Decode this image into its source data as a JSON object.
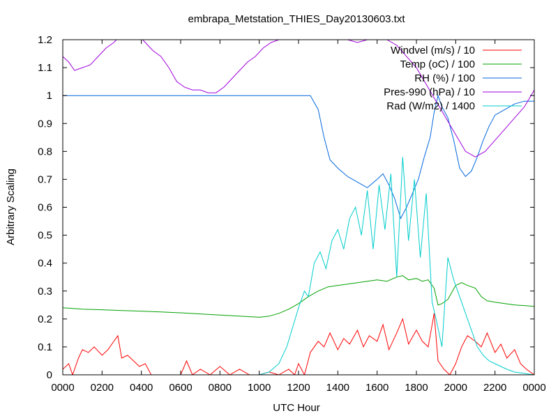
{
  "chart_data": {
    "type": "line",
    "title": "embrapa_Metstation_THIES_Day20130603.txt",
    "xlabel": "UTC Hour",
    "ylabel": "Arbitrary Scaling",
    "xlim": [
      0,
      24
    ],
    "ylim": [
      0,
      1.2
    ],
    "x_ticks": [
      0,
      2,
      4,
      6,
      8,
      10,
      12,
      14,
      16,
      18,
      20,
      22,
      24
    ],
    "x_tick_labels": [
      "0000",
      "0200",
      "0400",
      "0600",
      "0800",
      "1000",
      "1200",
      "1400",
      "1600",
      "1800",
      "2000",
      "2200",
      "0000"
    ],
    "y_ticks": [
      0,
      0.1,
      0.2,
      0.3,
      0.4,
      0.5,
      0.6,
      0.7,
      0.8,
      0.9,
      1,
      1.1,
      1.2
    ],
    "y_tick_labels": [
      "0",
      "0.1",
      "0.2",
      "0.3",
      "0.4",
      "0.5",
      "0.6",
      "0.7",
      "0.8",
      "0.9",
      "1",
      "1.1",
      "1.2"
    ],
    "grid": false,
    "legend_position": "top-right",
    "series": [
      {
        "name": "Windvel (m/s) / 10",
        "color": "#ff0000",
        "x": [
          0,
          0.3,
          0.5,
          0.8,
          1.0,
          1.3,
          1.6,
          2.0,
          2.3,
          2.6,
          2.8,
          3.0,
          3.3,
          3.6,
          3.9,
          4.2,
          4.5,
          5.0,
          5.5,
          6.0,
          6.3,
          6.6,
          7.0,
          7.5,
          8.0,
          8.5,
          9.0,
          9.5,
          10.0,
          10.5,
          11.0,
          11.5,
          11.8,
          12.0,
          12.3,
          12.6,
          13.0,
          13.3,
          13.6,
          14.0,
          14.3,
          14.6,
          15.0,
          15.3,
          15.6,
          16.0,
          16.3,
          16.6,
          17.0,
          17.3,
          17.6,
          18.0,
          18.3,
          18.6,
          18.9,
          19.1,
          19.4,
          19.7,
          20.0,
          20.3,
          20.6,
          21.0,
          21.3,
          21.6,
          22.0,
          22.3,
          22.6,
          23.0,
          23.3,
          23.6,
          24.0
        ],
        "values": [
          0.02,
          0.04,
          0.0,
          0.06,
          0.09,
          0.08,
          0.1,
          0.07,
          0.09,
          0.12,
          0.14,
          0.06,
          0.07,
          0.05,
          0.03,
          0.04,
          0.0,
          0.0,
          0.0,
          0.0,
          0.05,
          0.0,
          0.02,
          0.0,
          0.03,
          0.0,
          0.02,
          0.0,
          0.0,
          0.01,
          0.0,
          0.02,
          0.0,
          0.04,
          0.0,
          0.08,
          0.12,
          0.1,
          0.15,
          0.09,
          0.13,
          0.11,
          0.16,
          0.1,
          0.14,
          0.12,
          0.18,
          0.09,
          0.15,
          0.2,
          0.11,
          0.16,
          0.12,
          0.1,
          0.22,
          0.05,
          0.02,
          0.0,
          0.04,
          0.1,
          0.14,
          0.12,
          0.1,
          0.15,
          0.08,
          0.11,
          0.06,
          0.09,
          0.04,
          0.02,
          0.0
        ]
      },
      {
        "name": "Temp (oC) / 100",
        "color": "#00a000",
        "x": [
          0,
          1,
          2,
          3,
          4,
          5,
          6,
          7,
          8,
          9,
          10,
          10.5,
          11,
          11.5,
          12,
          12.5,
          13,
          13.5,
          14,
          14.5,
          15,
          15.5,
          16,
          16.5,
          17,
          17.3,
          17.6,
          18,
          18.3,
          18.6,
          18.9,
          19.1,
          19.3,
          19.6,
          20,
          20.3,
          20.6,
          21,
          21.3,
          21.6,
          22,
          22.5,
          23,
          23.5,
          24
        ],
        "values": [
          0.24,
          0.235,
          0.233,
          0.23,
          0.228,
          0.225,
          0.222,
          0.218,
          0.214,
          0.21,
          0.206,
          0.21,
          0.22,
          0.235,
          0.255,
          0.28,
          0.3,
          0.315,
          0.32,
          0.325,
          0.33,
          0.335,
          0.34,
          0.335,
          0.35,
          0.355,
          0.34,
          0.345,
          0.335,
          0.34,
          0.31,
          0.25,
          0.255,
          0.27,
          0.32,
          0.33,
          0.32,
          0.31,
          0.28,
          0.265,
          0.26,
          0.255,
          0.25,
          0.248,
          0.245
        ]
      },
      {
        "name": "RH (%) / 100",
        "color": "#0066dd",
        "x": [
          0,
          2,
          4,
          6,
          8,
          10,
          12,
          12.3,
          12.6,
          13,
          13.3,
          13.6,
          14,
          14.5,
          15,
          15.5,
          16,
          16.3,
          16.6,
          16.9,
          17.2,
          17.5,
          17.8,
          18.1,
          18.4,
          18.7,
          18.9,
          19.1,
          19.3,
          19.6,
          19.9,
          20.2,
          20.5,
          20.8,
          21.1,
          21.4,
          21.7,
          22,
          22.5,
          23,
          23.5,
          24
        ],
        "values": [
          1.0,
          1.0,
          1.0,
          1.0,
          1.0,
          1.0,
          1.0,
          1.0,
          1.0,
          0.95,
          0.85,
          0.77,
          0.74,
          0.71,
          0.69,
          0.67,
          0.7,
          0.72,
          0.68,
          0.63,
          0.56,
          0.6,
          0.65,
          0.7,
          0.78,
          0.85,
          0.94,
          1.0,
          0.96,
          0.92,
          0.84,
          0.74,
          0.71,
          0.73,
          0.78,
          0.84,
          0.89,
          0.93,
          0.95,
          0.97,
          0.98,
          0.98
        ]
      },
      {
        "name": "Pres-990 (hPa) / 10",
        "color": "#a000dd",
        "x": [
          0,
          0.3,
          0.6,
          1.0,
          1.4,
          1.8,
          2.2,
          2.6,
          3.0,
          3.4,
          3.8,
          4.2,
          4.6,
          5.0,
          5.4,
          5.8,
          6.2,
          6.6,
          7.0,
          7.4,
          7.8,
          8.2,
          8.6,
          9.0,
          9.4,
          9.8,
          10.2,
          10.6,
          11.0,
          11.4,
          11.8,
          12.2,
          12.6,
          13.0,
          13.5,
          14.0,
          14.5,
          15.0,
          15.5,
          16.0,
          16.5,
          17.0,
          17.5,
          18.0,
          18.5,
          19.0,
          19.5,
          20.0,
          20.5,
          21.0,
          21.5,
          22.0,
          22.5,
          23.0,
          23.5,
          24.0
        ],
        "values": [
          1.14,
          1.12,
          1.09,
          1.1,
          1.11,
          1.14,
          1.17,
          1.19,
          1.22,
          1.23,
          1.22,
          1.19,
          1.16,
          1.14,
          1.1,
          1.05,
          1.03,
          1.02,
          1.02,
          1.01,
          1.01,
          1.03,
          1.06,
          1.09,
          1.12,
          1.14,
          1.17,
          1.19,
          1.2,
          1.22,
          1.24,
          1.25,
          1.26,
          1.25,
          1.23,
          1.21,
          1.2,
          1.19,
          1.2,
          1.21,
          1.2,
          1.18,
          1.14,
          1.1,
          1.04,
          0.98,
          0.92,
          0.86,
          0.8,
          0.78,
          0.8,
          0.84,
          0.88,
          0.92,
          0.96,
          1.02
        ]
      },
      {
        "name": "Rad (W/m2) / 1400",
        "color": "#00cccc",
        "x": [
          0,
          2,
          4,
          6,
          8,
          10,
          10.5,
          11.0,
          11.4,
          11.7,
          12.0,
          12.3,
          12.5,
          12.8,
          13.1,
          13.4,
          13.7,
          14.0,
          14.3,
          14.6,
          14.9,
          15.2,
          15.5,
          15.8,
          16.1,
          16.4,
          16.7,
          17.0,
          17.3,
          17.6,
          17.9,
          18.2,
          18.5,
          18.8,
          19.0,
          19.3,
          19.6,
          19.9,
          20.2,
          20.5,
          20.8,
          21.1,
          21.4,
          21.7,
          22.0,
          22.3,
          22.6,
          23.0,
          23.5,
          24.0
        ],
        "values": [
          0,
          0,
          0,
          0,
          0,
          0,
          0.01,
          0.04,
          0.1,
          0.17,
          0.24,
          0.3,
          0.28,
          0.4,
          0.44,
          0.38,
          0.48,
          0.52,
          0.45,
          0.56,
          0.6,
          0.5,
          0.66,
          0.45,
          0.68,
          0.52,
          0.72,
          0.35,
          0.78,
          0.48,
          0.7,
          0.42,
          0.65,
          0.26,
          0.2,
          0.1,
          0.42,
          0.34,
          0.28,
          0.22,
          0.16,
          0.1,
          0.07,
          0.05,
          0.04,
          0.03,
          0.02,
          0.01,
          0.005,
          0.0
        ]
      }
    ]
  }
}
